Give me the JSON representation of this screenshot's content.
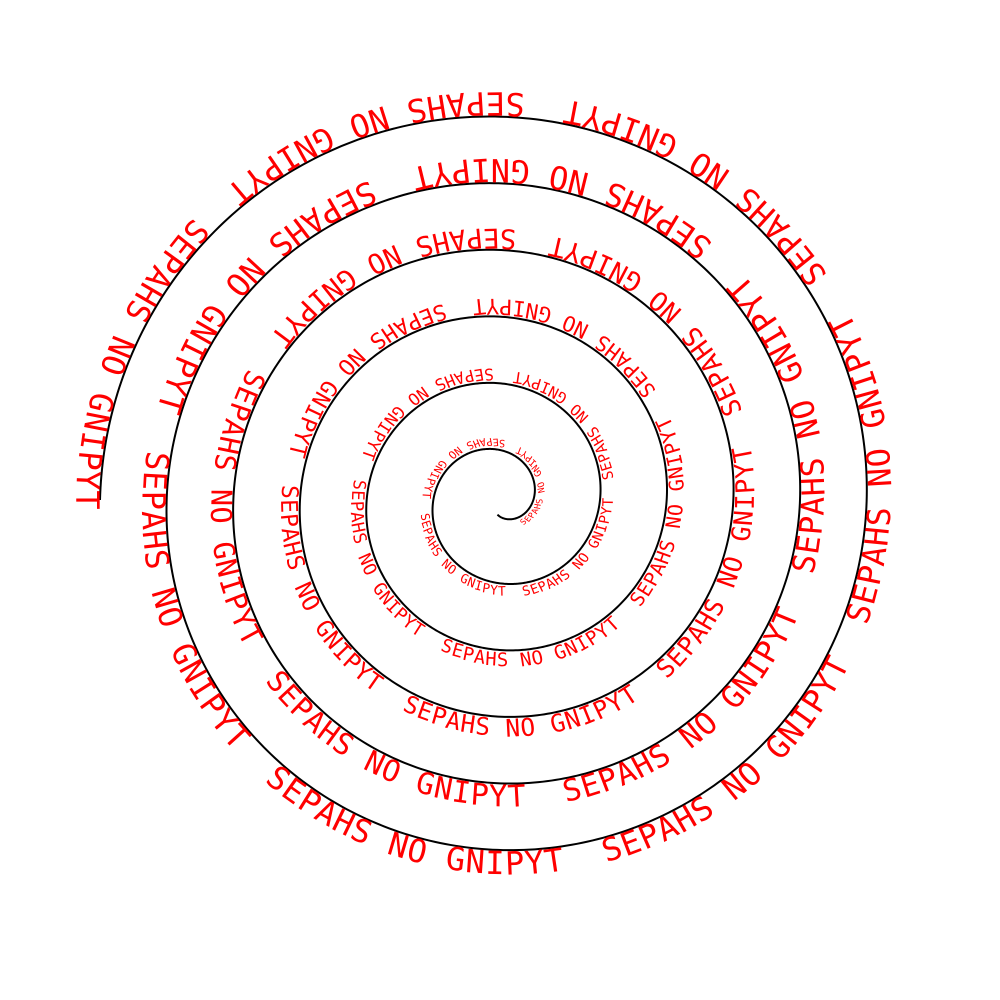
{
  "text": "TYPING ON SHAPES",
  "colors": {
    "text": "#ff0000",
    "line": "#000000",
    "background": "#ffffff"
  }
}
